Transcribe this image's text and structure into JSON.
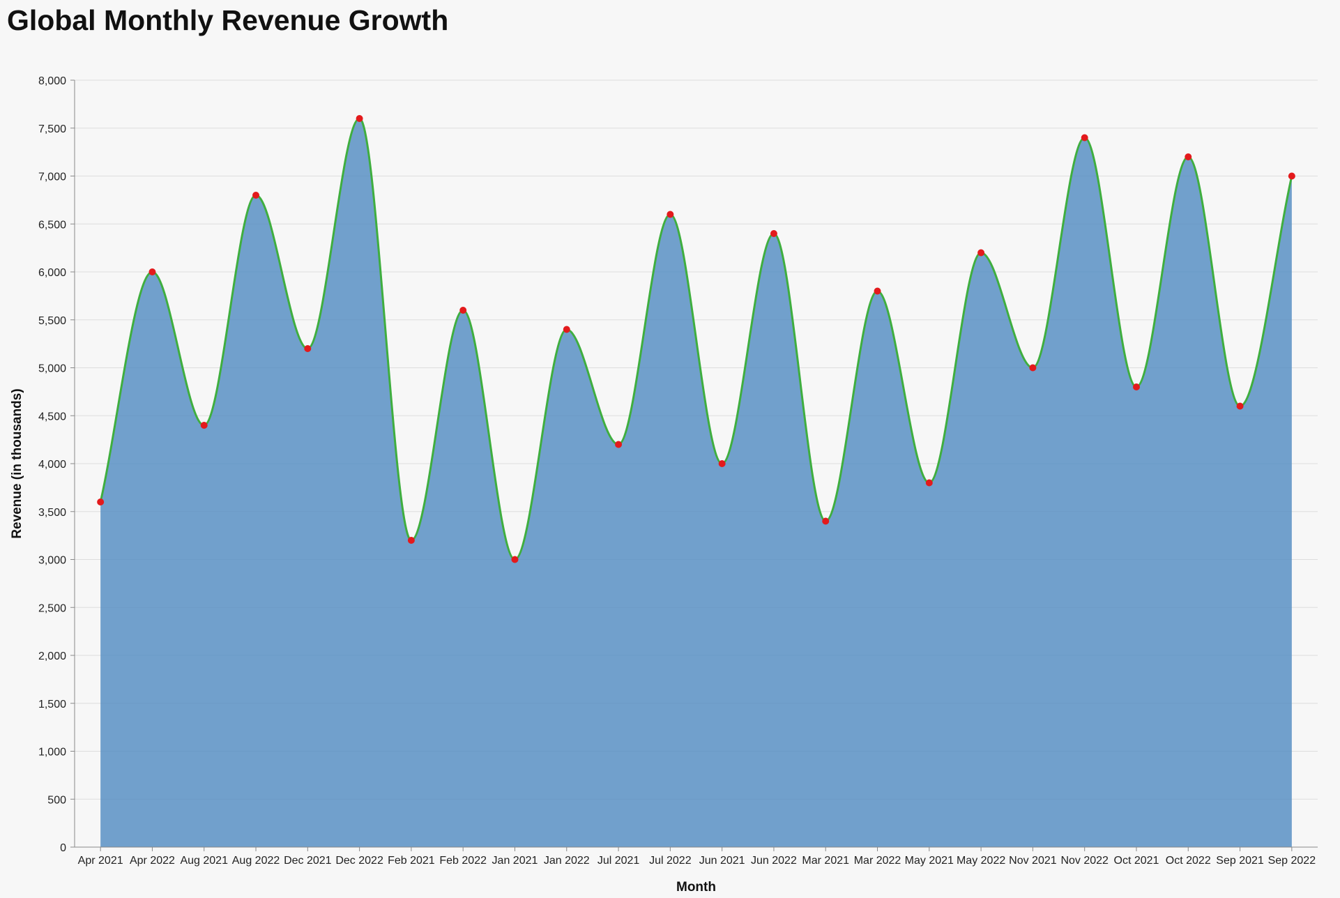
{
  "chart_data": {
    "type": "area",
    "title": "Global Monthly Revenue Growth",
    "xlabel": "Month",
    "ylabel": "Revenue (in thousands)",
    "ylim": [
      0,
      8000
    ],
    "yticks": [
      0,
      500,
      1000,
      1500,
      2000,
      2500,
      3000,
      3500,
      4000,
      4500,
      5000,
      5500,
      6000,
      6500,
      7000,
      7500,
      8000
    ],
    "ytick_labels": [
      "0",
      "500",
      "1,000",
      "1,500",
      "2,000",
      "2,500",
      "3,000",
      "3,500",
      "4,000",
      "4,500",
      "5,000",
      "5,500",
      "6,000",
      "6,500",
      "7,000",
      "7,500",
      "8,000"
    ],
    "grid": true,
    "categories": [
      "Apr 2021",
      "Apr 2022",
      "Aug 2021",
      "Aug 2022",
      "Dec 2021",
      "Dec 2022",
      "Feb 2021",
      "Feb 2022",
      "Jan 2021",
      "Jan 2022",
      "Jul 2021",
      "Jul 2022",
      "Jun 2021",
      "Jun 2022",
      "Mar 2021",
      "Mar 2022",
      "May 2021",
      "May 2022",
      "Nov 2021",
      "Nov 2022",
      "Oct 2021",
      "Oct 2022",
      "Sep 2021",
      "Sep 2022"
    ],
    "values": [
      3600,
      6000,
      4400,
      6800,
      5200,
      7600,
      3200,
      5600,
      3000,
      5400,
      4200,
      6600,
      4000,
      6400,
      3400,
      5800,
      3800,
      6200,
      5000,
      7400,
      4800,
      7200,
      4600,
      7000
    ],
    "colors": {
      "area": "#4c88c0",
      "line": "#3fae3f",
      "points": "#e31a1c",
      "grid": "#dddddd",
      "axis": "#888888"
    }
  }
}
